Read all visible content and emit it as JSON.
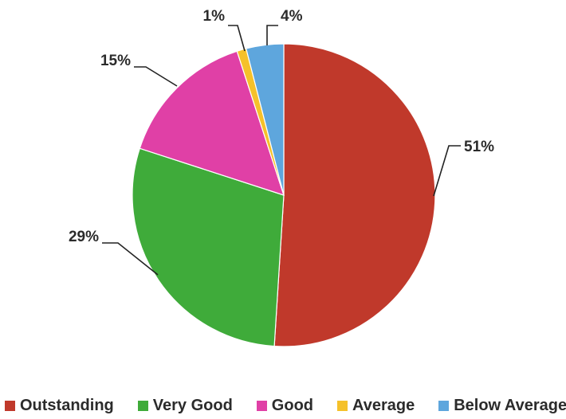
{
  "chart_data": {
    "type": "pie",
    "title": "",
    "categories": [
      "Outstanding",
      "Very Good",
      "Good",
      "Average",
      "Below Average"
    ],
    "values": [
      51,
      29,
      15,
      1,
      4
    ],
    "labels": [
      "51%",
      "29%",
      "15%",
      "1%",
      "4%"
    ],
    "colors": [
      "#c0392b",
      "#3fab3a",
      "#e040a6",
      "#f5c12a",
      "#5ea6dd"
    ],
    "legend_position": "bottom",
    "start_angle": "12 o'clock, clockwise"
  },
  "legend": {
    "items": [
      {
        "label": "Outstanding",
        "color": "#c0392b"
      },
      {
        "label": "Very Good",
        "color": "#3fab3a"
      },
      {
        "label": "Good",
        "color": "#e040a6"
      },
      {
        "label": "Average",
        "color": "#f5c12a"
      },
      {
        "label": "Below Average",
        "color": "#5ea6dd"
      }
    ]
  }
}
